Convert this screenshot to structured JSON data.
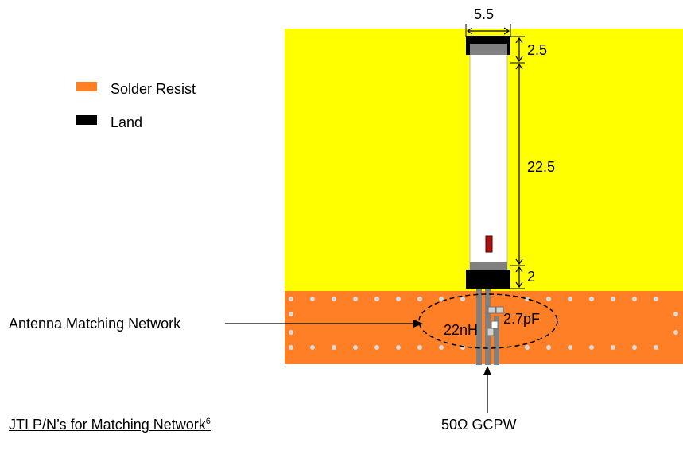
{
  "legend": {
    "items": [
      {
        "label": "Solder Resist",
        "color": "#ff7f27"
      },
      {
        "label": "Land",
        "color": "#000000"
      }
    ]
  },
  "dimensions": {
    "width": "5.5",
    "top_land": "2.5",
    "body_length": "22.5",
    "bottom_land": "2"
  },
  "components": {
    "inductor": "22nH",
    "capacitor": "2.7pF"
  },
  "callouts": {
    "matching_network": "Antenna Matching Network",
    "feedline": "50Ω GCPW"
  },
  "footer": {
    "pn_link_text": "JTI P/N’s for Matching Network",
    "pn_superscript": "6"
  },
  "colors": {
    "ground_plane": "#ffff00",
    "solder_resist": "#ff7f27",
    "land": "#000000",
    "pad_gray": "#808080",
    "antenna_body": "#ffffff",
    "marker": "#a31515"
  }
}
